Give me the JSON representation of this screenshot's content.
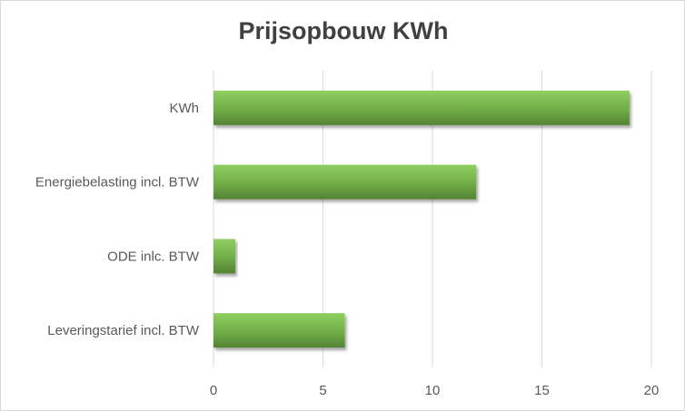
{
  "chart_data": {
    "type": "bar",
    "orientation": "horizontal",
    "title": "Prijsopbouw KWh",
    "categories": [
      "KWh",
      "Energiebelasting incl. BTW",
      "ODE inlc. BTW",
      "Leveringstarief incl. BTW"
    ],
    "values": [
      19,
      12,
      1,
      6
    ],
    "xlim": [
      0,
      20
    ],
    "xticks": [
      0,
      5,
      10,
      15,
      20
    ],
    "grid": true,
    "legend": "none",
    "colors": {
      "bar": "#70ad47",
      "bar_light": "#8fcf5f",
      "bar_dark": "#548235",
      "grid": "#d9d9d9",
      "text": "#595959",
      "title": "#404040"
    }
  }
}
